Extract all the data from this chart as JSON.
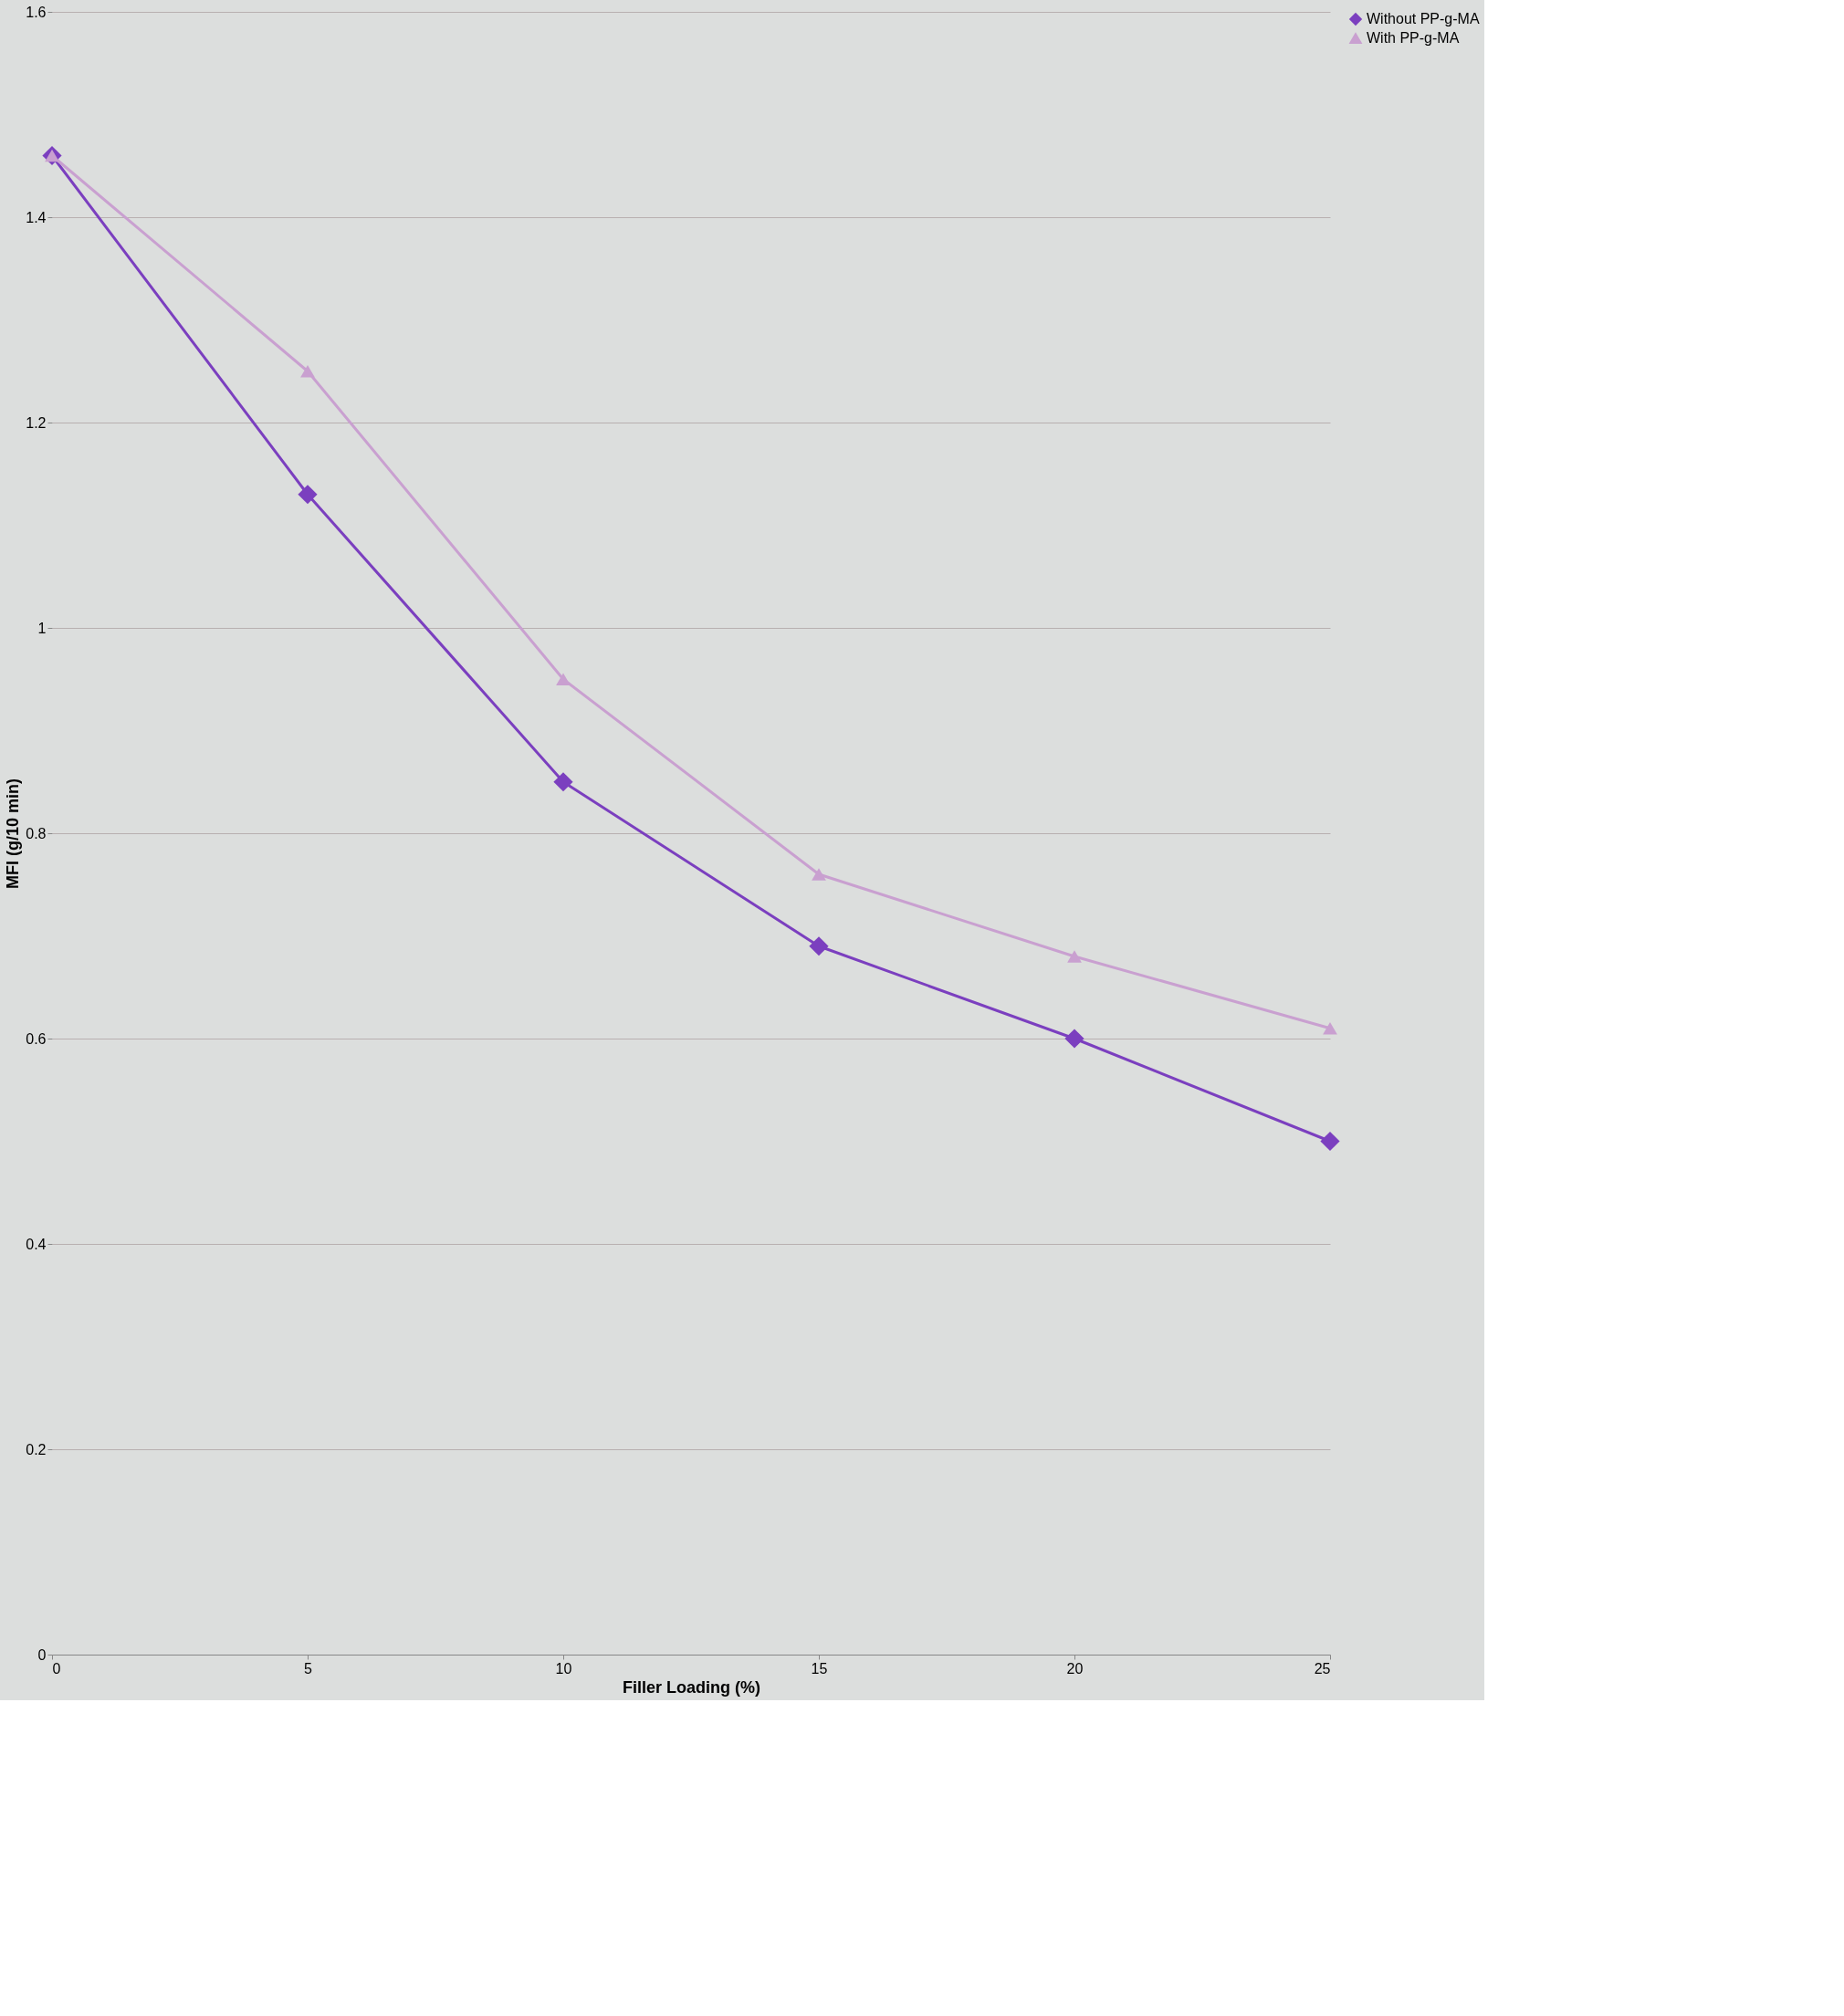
{
  "chart_data": {
    "type": "line",
    "xlabel": "Filler Loading (%)",
    "ylabel": "MFI (g/10 min)",
    "x": [
      0,
      5,
      10,
      15,
      20,
      25
    ],
    "xlim": [
      0,
      25
    ],
    "xticks": [
      0,
      5,
      10,
      15,
      20,
      25
    ],
    "ylim": [
      0,
      1.6
    ],
    "yticks": [
      0,
      0.2,
      0.4,
      0.6,
      0.8,
      1,
      1.2,
      1.4,
      1.6
    ],
    "grid": "y",
    "legend": "right",
    "series": [
      {
        "name": "Without PP-g-MA",
        "color": "#7b3fbf",
        "marker": "diamond",
        "values": [
          1.46,
          1.13,
          0.85,
          0.69,
          0.6,
          0.5
        ]
      },
      {
        "name": "With PP-g-MA",
        "color": "#c9a0d0",
        "marker": "triangle",
        "values": [
          1.46,
          1.25,
          0.95,
          0.76,
          0.68,
          0.61
        ]
      }
    ]
  }
}
